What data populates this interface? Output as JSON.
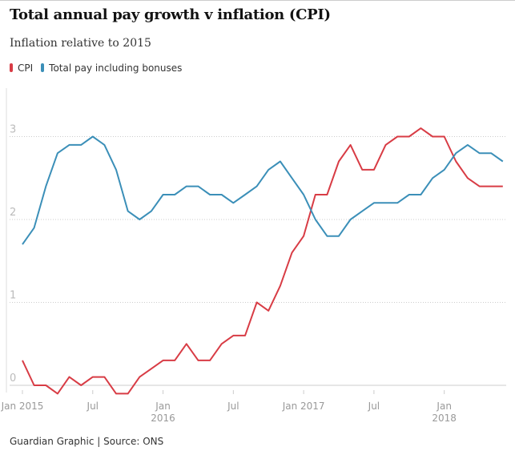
{
  "chart_data": {
    "type": "line",
    "title": "Total annual pay growth v inflation (CPI)",
    "subtitle": "Inflation relative to 2015",
    "x": [
      "2015-01",
      "2015-02",
      "2015-03",
      "2015-04",
      "2015-05",
      "2015-06",
      "2015-07",
      "2015-08",
      "2015-09",
      "2015-10",
      "2015-11",
      "2015-12",
      "2016-01",
      "2016-02",
      "2016-03",
      "2016-04",
      "2016-05",
      "2016-06",
      "2016-07",
      "2016-08",
      "2016-09",
      "2016-10",
      "2016-11",
      "2016-12",
      "2017-01",
      "2017-02",
      "2017-03",
      "2017-04",
      "2017-05",
      "2017-06",
      "2017-07",
      "2017-08",
      "2017-09",
      "2017-10",
      "2017-11",
      "2017-12",
      "2018-01",
      "2018-02",
      "2018-03",
      "2018-04",
      "2018-05",
      "2018-06"
    ],
    "series": [
      {
        "name": "CPI",
        "color": "#d83c45",
        "values": [
          0.3,
          0,
          0,
          -0.1,
          0.1,
          0,
          0.1,
          0.1,
          -0.1,
          -0.1,
          0.1,
          0.2,
          0.3,
          0.3,
          0.5,
          0.3,
          0.3,
          0.5,
          0.6,
          0.6,
          1.0,
          0.9,
          1.2,
          1.6,
          1.8,
          2.3,
          2.3,
          2.7,
          2.9,
          2.6,
          2.6,
          2.9,
          3.0,
          3.0,
          3.1,
          3.0,
          3.0,
          2.7,
          2.5,
          2.4,
          2.4,
          2.4
        ]
      },
      {
        "name": "Total pay including bonuses",
        "color": "#3b8fb8",
        "values": [
          1.7,
          1.9,
          2.4,
          2.8,
          2.9,
          2.9,
          3.0,
          2.9,
          2.6,
          2.1,
          2.0,
          2.1,
          2.3,
          2.3,
          2.4,
          2.4,
          2.3,
          2.3,
          2.2,
          2.3,
          2.4,
          2.6,
          2.7,
          2.5,
          2.3,
          2.0,
          1.8,
          1.8,
          2.0,
          2.1,
          2.2,
          2.2,
          2.2,
          2.3,
          2.3,
          2.5,
          2.6,
          2.8,
          2.9,
          2.8,
          2.8,
          2.7
        ]
      }
    ],
    "yticks": [
      "0",
      "1",
      "2",
      "3"
    ],
    "ylim": [
      -0.15,
      3.3
    ],
    "xticks": [
      {
        "at": "2015-01",
        "label": "Jan 2015",
        "label2": ""
      },
      {
        "at": "2015-07",
        "label": "Jul",
        "label2": ""
      },
      {
        "at": "2016-01",
        "label": "Jan",
        "label2": "2016"
      },
      {
        "at": "2016-07",
        "label": "Jul",
        "label2": ""
      },
      {
        "at": "2017-01",
        "label": "Jan 2017",
        "label2": ""
      },
      {
        "at": "2017-07",
        "label": "Jul",
        "label2": ""
      },
      {
        "at": "2018-01",
        "label": "Jan",
        "label2": "2018"
      }
    ],
    "grid": true,
    "legend": "top-left"
  },
  "footer": "Guardian Graphic | Source: ONS"
}
